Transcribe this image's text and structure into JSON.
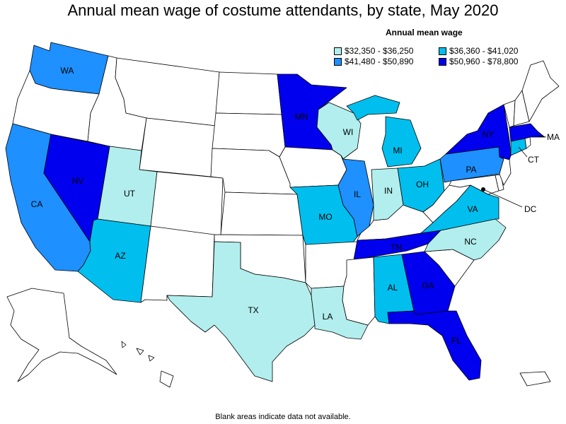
{
  "title": "Annual mean wage of costume attendants, by state, May 2020",
  "legend": {
    "title": "Annual mean wage",
    "bins": [
      {
        "label": "$32,350 - $36,250",
        "color": "#b2eeee"
      },
      {
        "label": "$36,360 - $41,020",
        "color": "#00bfee"
      },
      {
        "label": "$41,480 - $50,890",
        "color": "#1e90ff"
      },
      {
        "label": "$50,960 - $78,800",
        "color": "#0000ee"
      }
    ]
  },
  "footnote": "Blank areas indicate data not available.",
  "colors": {
    "no_data": "#ffffff",
    "border": "#000000"
  },
  "states": {
    "WA": {
      "label": "WA",
      "bin": 2
    },
    "CA": {
      "label": "CA",
      "bin": 2
    },
    "NV": {
      "label": "NV",
      "bin": 3
    },
    "UT": {
      "label": "UT",
      "bin": 0
    },
    "AZ": {
      "label": "AZ",
      "bin": 1
    },
    "TX": {
      "label": "TX",
      "bin": 0
    },
    "MN": {
      "label": "MN",
      "bin": 3
    },
    "WI": {
      "label": "WI",
      "bin": 0
    },
    "MI": {
      "label": "MI",
      "bin": 1
    },
    "IL": {
      "label": "IL",
      "bin": 2
    },
    "IN": {
      "label": "IN",
      "bin": 0
    },
    "OH": {
      "label": "OH",
      "bin": 1
    },
    "MO": {
      "label": "MO",
      "bin": 1
    },
    "LA": {
      "label": "LA",
      "bin": 0
    },
    "TN": {
      "label": "TN",
      "bin": 3
    },
    "AL": {
      "label": "AL",
      "bin": 1
    },
    "GA": {
      "label": "GA",
      "bin": 3
    },
    "FL": {
      "label": "FL",
      "bin": 3
    },
    "NC": {
      "label": "NC",
      "bin": 0
    },
    "VA": {
      "label": "VA",
      "bin": 1
    },
    "PA": {
      "label": "PA",
      "bin": 2
    },
    "NY": {
      "label": "NY",
      "bin": 3
    },
    "MA": {
      "label": "MA",
      "bin": 3
    },
    "CT": {
      "label": "CT",
      "bin": 1
    },
    "DC": {
      "label": "DC",
      "bin": 1
    }
  }
}
